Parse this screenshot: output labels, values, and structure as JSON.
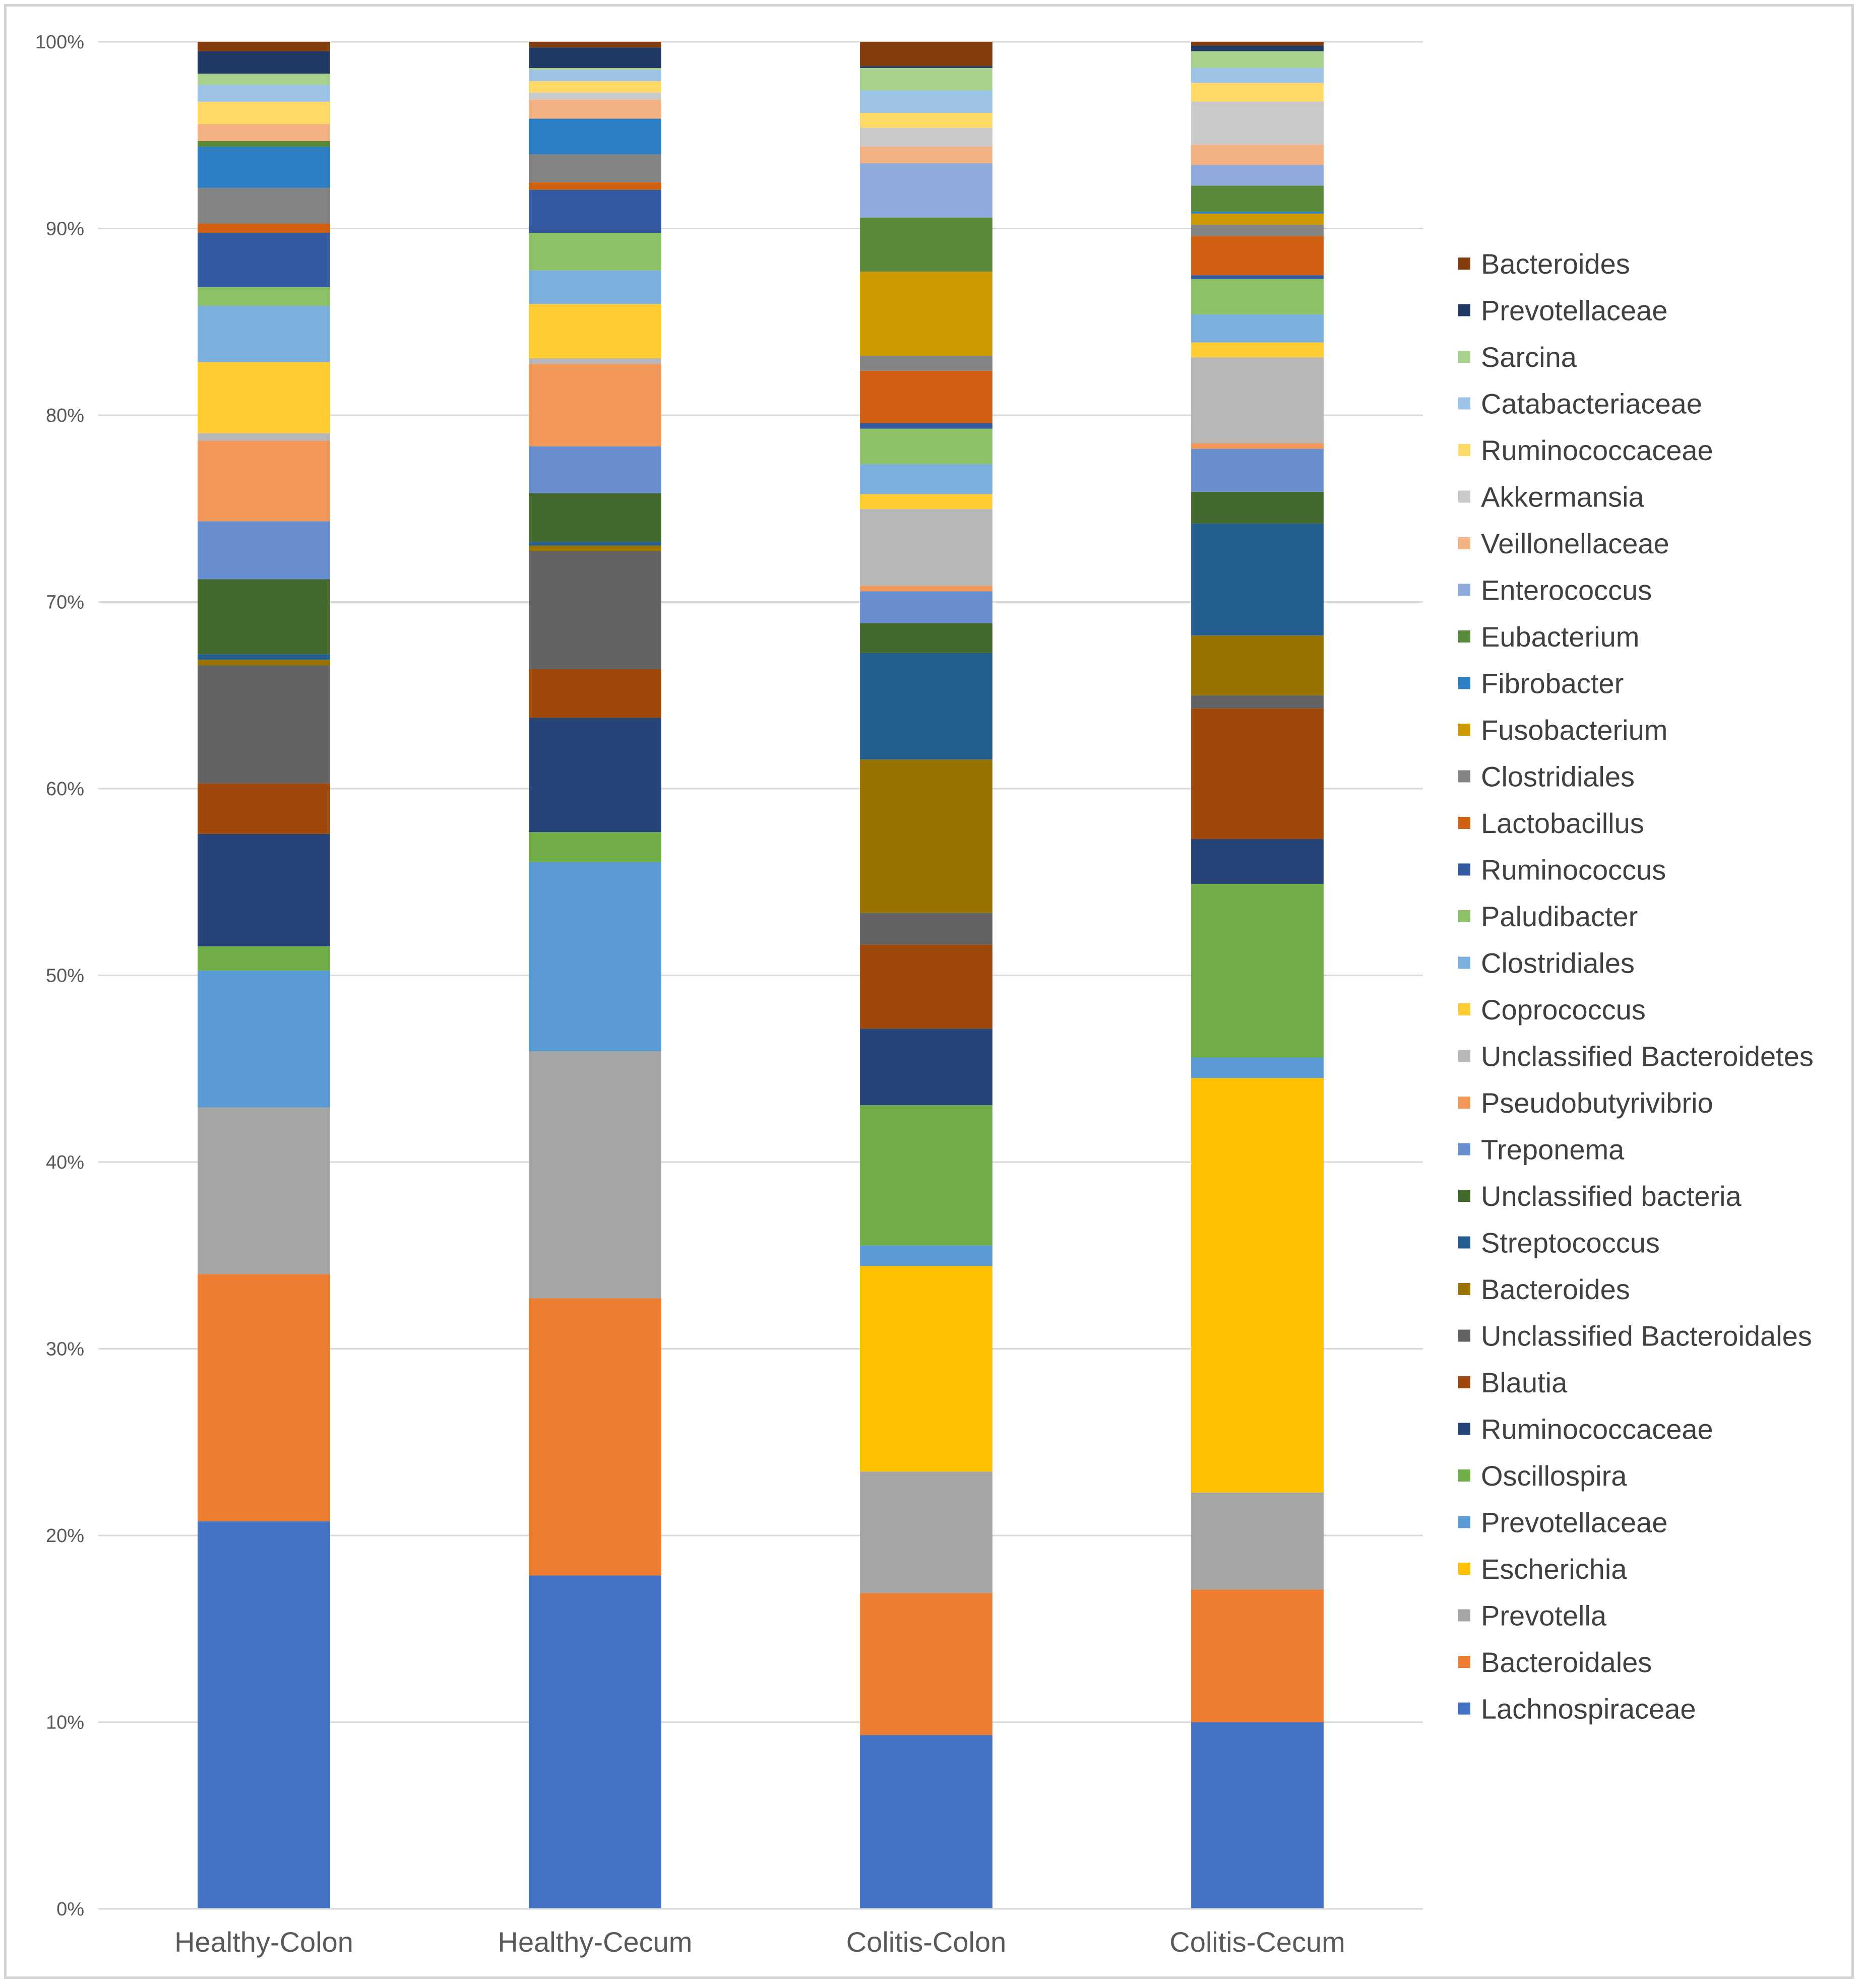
{
  "chart_data": {
    "type": "bar",
    "stacked": true,
    "percent": true,
    "title": "",
    "xlabel": "",
    "ylabel": "",
    "ylim": [
      0,
      100
    ],
    "y_ticks": [
      "0%",
      "10%",
      "20%",
      "30%",
      "40%",
      "50%",
      "60%",
      "70%",
      "80%",
      "90%",
      "100%"
    ],
    "grid": true,
    "legend_position": "right",
    "categories": [
      "Healthy-Colon",
      "Healthy-Cecum",
      "Colitis-Colon",
      "Colitis-Cecum"
    ],
    "series": [
      {
        "name": "Lachnospiraceae",
        "color": "#4472c4",
        "values": [
          20.7,
          17.8,
          9.3,
          10.0
        ]
      },
      {
        "name": "Bacteroidales",
        "color": "#ed7d31",
        "values": [
          13.2,
          14.8,
          7.6,
          7.1
        ]
      },
      {
        "name": "Prevotella",
        "color": "#a5a5a5",
        "values": [
          8.9,
          13.2,
          6.5,
          5.2
        ]
      },
      {
        "name": "Escherichia",
        "color": "#ffc000",
        "values": [
          0,
          0,
          11.0,
          22.2
        ]
      },
      {
        "name": "Prevotellaceae",
        "color": "#5b9bd5",
        "values": [
          7.3,
          10.1,
          1.1,
          1.1
        ]
      },
      {
        "name": "Oscillospira",
        "color": "#70ad47",
        "values": [
          1.3,
          1.6,
          7.5,
          9.3
        ]
      },
      {
        "name": "Ruminococcaceae",
        "color": "#264478",
        "values": [
          6.0,
          6.1,
          4.1,
          2.4
        ]
      },
      {
        "name": "Blautia",
        "color": "#9e480e",
        "values": [
          2.7,
          2.6,
          4.5,
          7.0
        ]
      },
      {
        "name": "Unclassified Bacteroidales",
        "color": "#636363",
        "values": [
          6.3,
          6.3,
          1.7,
          0.7
        ]
      },
      {
        "name": "Bacteroides",
        "color": "#997300",
        "values": [
          0.3,
          0.3,
          8.2,
          3.2
        ]
      },
      {
        "name": "Streptococcus",
        "color": "#255e91",
        "values": [
          0.3,
          0.2,
          5.7,
          6.0
        ]
      },
      {
        "name": "Unclassified bacteria",
        "color": "#43682b",
        "values": [
          4.0,
          2.6,
          1.6,
          1.7
        ]
      },
      {
        "name": "Treponema",
        "color": "#698ed0",
        "values": [
          3.1,
          2.5,
          1.7,
          2.3
        ]
      },
      {
        "name": "Pseudobutyrivibrio",
        "color": "#f1975a",
        "values": [
          4.3,
          4.4,
          0.3,
          0.3
        ]
      },
      {
        "name": "Unclassified Bacteroidetes",
        "color": "#b7b7b7",
        "values": [
          0.4,
          0.3,
          4.1,
          4.6
        ]
      },
      {
        "name": "Coprococcus",
        "color": "#ffcd33",
        "values": [
          3.8,
          2.9,
          0.8,
          0.8
        ]
      },
      {
        "name": "Clostridiales",
        "color": "#7cafdd",
        "values": [
          3.0,
          1.8,
          1.6,
          1.5
        ]
      },
      {
        "name": "Paludibacter",
        "color": "#8cc168",
        "values": [
          1.0,
          2.0,
          1.9,
          1.9
        ]
      },
      {
        "name": "Ruminococcus",
        "color": "#335aa1",
        "values": [
          2.9,
          2.3,
          0.3,
          0.2
        ]
      },
      {
        "name": "Lactobacillus",
        "color": "#d26012",
        "values": [
          0.5,
          0.4,
          2.8,
          2.1
        ]
      },
      {
        "name": "Clostridiales",
        "color": "#848484",
        "values": [
          1.9,
          1.5,
          0.8,
          0.6
        ]
      },
      {
        "name": "Fusobacterium",
        "color": "#cc9a00",
        "values": [
          0,
          0,
          4.5,
          0.6
        ]
      },
      {
        "name": "Fibrobacter",
        "color": "#2e7ec4",
        "values": [
          2.2,
          1.9,
          0,
          0.1
        ]
      },
      {
        "name": "Eubacterium",
        "color": "#5a8a39",
        "values": [
          0.3,
          0,
          2.9,
          1.4
        ]
      },
      {
        "name": "Enterococcus",
        "color": "#8faadc",
        "values": [
          0,
          0,
          2.9,
          1.1
        ]
      },
      {
        "name": "Veillonellaceae",
        "color": "#f4b183",
        "values": [
          0.9,
          1.0,
          0.9,
          1.1
        ]
      },
      {
        "name": "Akkermansia",
        "color": "#c9c9c9",
        "values": [
          0,
          0.4,
          1.0,
          2.3
        ]
      },
      {
        "name": "Ruminococcaceae",
        "color": "#ffd966",
        "values": [
          1.2,
          0.6,
          0.8,
          1.0
        ]
      },
      {
        "name": "Catabacteriaceae",
        "color": "#9dc3e6",
        "values": [
          0.9,
          0.6,
          1.2,
          0.8
        ]
      },
      {
        "name": "Sarcina",
        "color": "#a9d18e",
        "values": [
          0.6,
          0.1,
          1.2,
          0.9
        ]
      },
      {
        "name": "Prevotellaceae",
        "color": "#1f3864",
        "values": [
          1.2,
          1.1,
          0.1,
          0.3
        ]
      },
      {
        "name": "Bacteroides",
        "color": "#843c0c",
        "values": [
          0.5,
          0.3,
          1.3,
          0.2
        ]
      }
    ]
  }
}
